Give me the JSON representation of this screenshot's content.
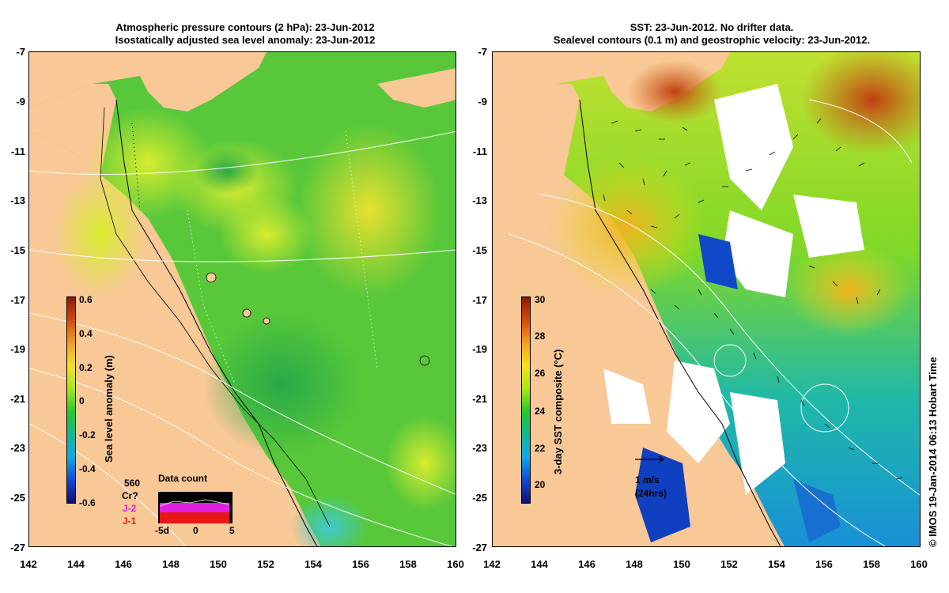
{
  "left_panel": {
    "title_line1": "Atmospheric pressure contours (2 hPa): 23-Jun-2012",
    "title_line2": "Isostatically adjusted sea level anomaly: 23-Jun-2012",
    "colorbar": {
      "label": "Sea level anomaly (m)",
      "ticks": [
        "0.6",
        "0.4",
        "0.2",
        "0",
        "-0.2",
        "-0.4",
        "-0.6"
      ],
      "colors": [
        "#8b1a0a",
        "#d24a10",
        "#f0a020",
        "#f5e020",
        "#a8e818",
        "#28c828",
        "#10b898",
        "#10a8e8",
        "#1048d8",
        "#101070"
      ]
    },
    "data_count": {
      "title": "Data count",
      "satellite_560": "560",
      "satellite_cr": "Cr?",
      "satellite_j2": "J-2",
      "satellite_j1": "J-1",
      "x_left": "-5d",
      "x_mid": "0",
      "x_right": "5",
      "j2_color": "#e020e0",
      "j1_color": "#e81818"
    }
  },
  "right_panel": {
    "title_line1": "SST: 23-Jun-2012. No drifter data.",
    "title_line2": "Sealevel contours (0.1 m) and geostrophic velocity: 23-Jun-2012.",
    "colorbar": {
      "label": "3-day SST composite (°C)",
      "ticks": [
        "30",
        "28",
        "26",
        "24",
        "22",
        "20"
      ],
      "colors": [
        "#8b1a0a",
        "#d24a10",
        "#f0a020",
        "#f5e020",
        "#a8e818",
        "#28c828",
        "#10b898",
        "#10a8e8",
        "#1048d8",
        "#101070"
      ]
    },
    "velocity_scale": {
      "label": "1 m/s",
      "sublabel": "(24hrs)"
    }
  },
  "axes": {
    "lat_ticks": [
      "-7",
      "-9",
      "-11",
      "-13",
      "-15",
      "-17",
      "-19",
      "-21",
      "-23",
      "-25",
      "-27"
    ],
    "lon_ticks": [
      "142",
      "144",
      "146",
      "148",
      "150",
      "152",
      "154",
      "156",
      "158",
      "160"
    ]
  },
  "credit": "© IMOS 19-Jan-2014 06:13 Hobart Time",
  "colors": {
    "land": "#f8c896",
    "sea_green": "#5cc83c"
  }
}
